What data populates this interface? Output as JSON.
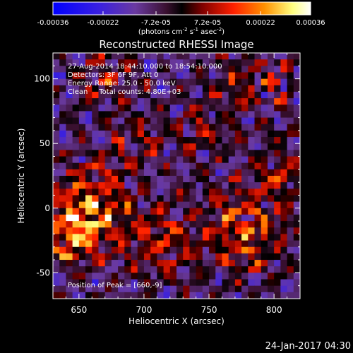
{
  "chart_data": {
    "type": "heatmap",
    "title": "Reconstructed RHESSI Image",
    "xlabel": "Heliocentric X (arcsec)",
    "ylabel": "Heliocentric Y (arcsec)",
    "xlim": [
      630,
      820
    ],
    "ylim": [
      -70,
      120
    ],
    "xticks": [
      650,
      700,
      750,
      800
    ],
    "yticks": [
      -50,
      0,
      50,
      100
    ],
    "colorbar": {
      "min": -0.00036,
      "max": 0.00036,
      "ticks": [
        "-0.00036",
        "-0.00022",
        "-7.2e-05",
        "7.2e-05",
        "0.00022",
        "0.00036"
      ],
      "tick_values": [
        -0.00036,
        -0.00022,
        -7.2e-05,
        7.2e-05,
        0.00022,
        0.00036
      ],
      "label": "(photons cm",
      "label_exp1": "-2",
      "label_mid": " s",
      "label_exp2": "-1",
      "label_end": " asec",
      "label_exp3": "-2",
      "label_close": ")"
    },
    "annotations": [
      "27-Aug-2014 18:44:10.000 to 18:54:10.000",
      "Detectors: 3F 6F 9F, Att 0",
      "Energy Range: 25.0 - 50.0 keV",
      "Clean     Total counts: 4.80E+03"
    ],
    "peak_label": "Position of Peak = [660,-9]",
    "peak": [
      660,
      -9
    ],
    "grid": false
  },
  "footer": {
    "timestamp": "24-Jan-2017 04:30"
  },
  "colors": {
    "background": "#000000",
    "text": "#ffffff",
    "colormap": [
      "#0000ff",
      "#5a2bd0",
      "#6a3aa0",
      "#3a1030",
      "#000000",
      "#800000",
      "#ff2000",
      "#ff9000",
      "#ffff80",
      "#ffffff"
    ]
  }
}
